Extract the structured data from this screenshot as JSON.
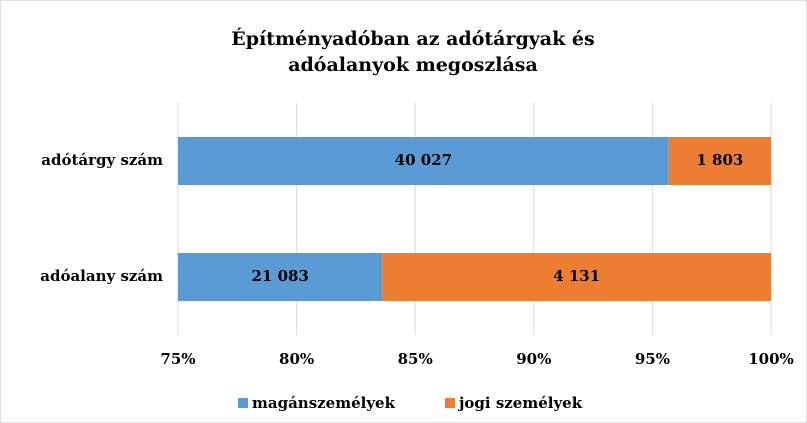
{
  "chart_data": {
    "type": "stacked_percent_barh",
    "title": "Építményadóban az adótárgyak és adóalanyok megoszlása",
    "categories": [
      "adótárgy szám",
      "adóalany szám"
    ],
    "series": [
      {
        "name": "magánszemélyek",
        "color": "#5b9bd5",
        "values": [
          40027,
          21083
        ],
        "value_labels": [
          "40 027",
          "21 083"
        ]
      },
      {
        "name": "jogi személyek",
        "color": "#ed7d31",
        "values": [
          1803,
          4131
        ],
        "value_labels": [
          "1 803",
          "4 131"
        ]
      }
    ],
    "xlim": [
      75,
      100
    ],
    "xticks": [
      {
        "value": 75,
        "label": "75%"
      },
      {
        "value": 80,
        "label": "80%"
      },
      {
        "value": 85,
        "label": "85%"
      },
      {
        "value": 90,
        "label": "90%"
      },
      {
        "value": 95,
        "label": "95%"
      },
      {
        "value": 100,
        "label": "100%"
      }
    ],
    "grid": true,
    "legend": "bottom"
  }
}
